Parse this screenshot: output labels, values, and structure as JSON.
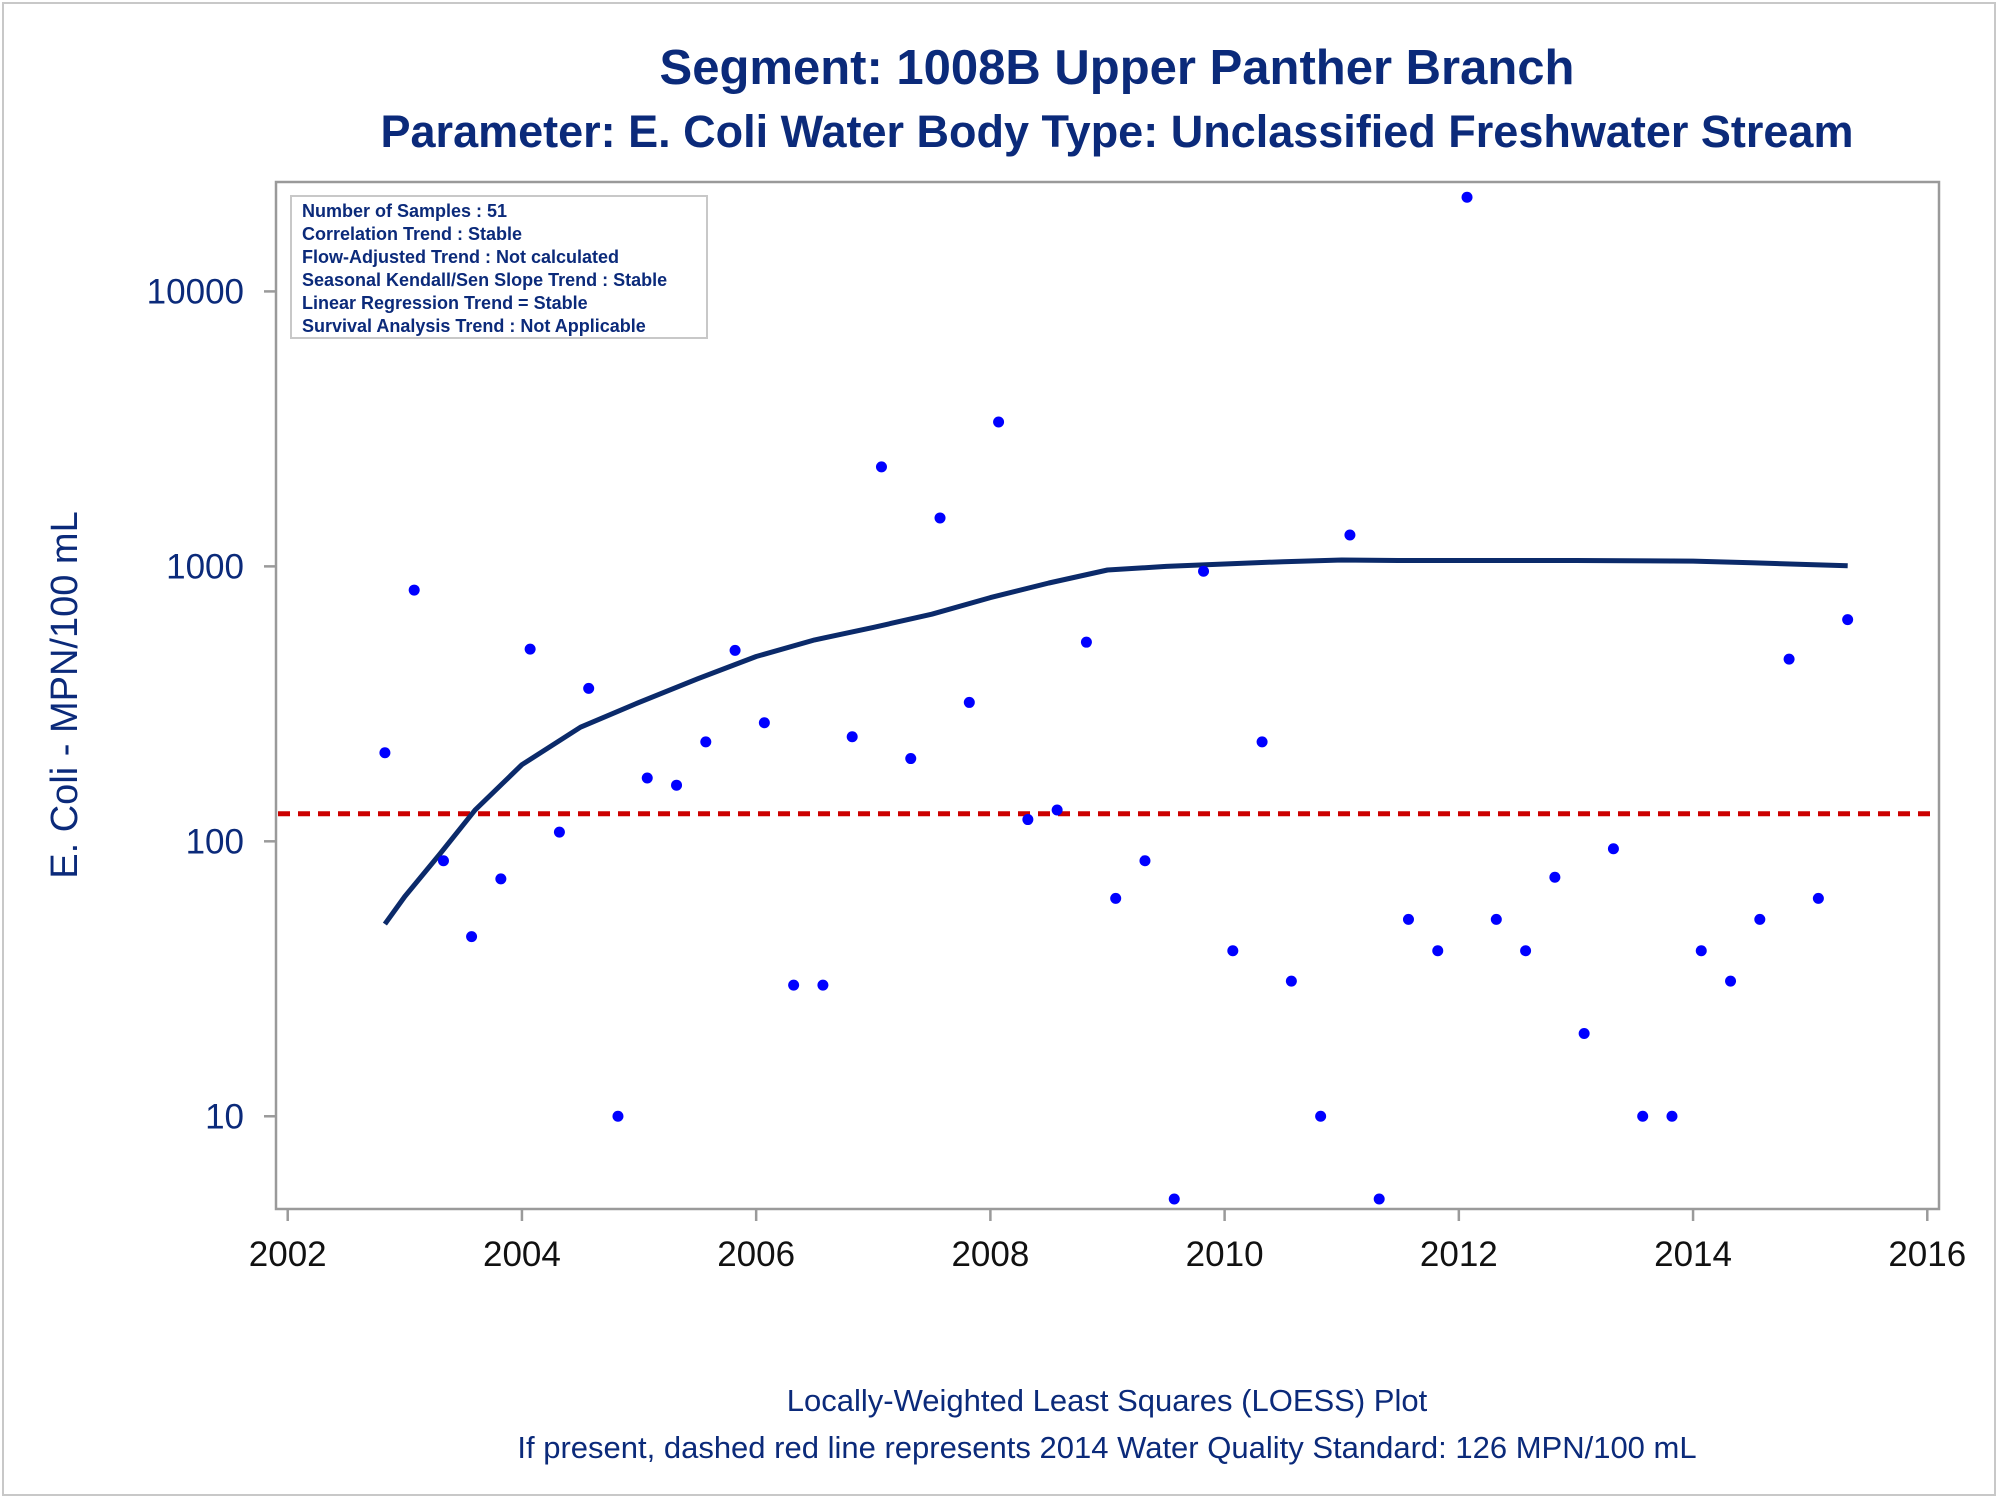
{
  "colors": {
    "text": "#0b2a7a",
    "tick_text_x": "#111111",
    "frame": "#9a9a9a",
    "points": "#0000ff",
    "loess": "#0b2a6a",
    "standard_line": "#cc0000"
  },
  "titles": {
    "line1": "Segment: 1008B  Upper Panther Branch",
    "line2": "Parameter: E. Coli   Water Body Type: Unclassified Freshwater Stream"
  },
  "footnotes": {
    "line1": "Locally-Weighted Least Squares (LOESS) Plot",
    "line2": "If present, dashed red line represents 2014 Water Quality Standard: 126 MPN/100 mL"
  },
  "stats_box": {
    "lines": [
      "Number of Samples : 51",
      "Correlation Trend : Stable",
      "Flow-Adjusted Trend : Not calculated",
      "Seasonal Kendall/Sen Slope Trend : Stable",
      "Linear Regression Trend = Stable",
      "Survival Analysis Trend : Not Applicable"
    ]
  },
  "chart_data": {
    "type": "scatter",
    "xlabel": "",
    "ylabel": "E. Coli - MPN/100 mL",
    "x_scale": "linear",
    "y_scale": "log",
    "xlim": [
      2001.9,
      2016.1
    ],
    "ylim": [
      4.6,
      25000
    ],
    "x_ticks": [
      2002,
      2004,
      2006,
      2008,
      2010,
      2012,
      2014,
      2016
    ],
    "x_tick_labels": [
      "2002",
      "2004",
      "2006",
      "2008",
      "2010",
      "2012",
      "2014",
      "2016"
    ],
    "y_ticks": [
      10,
      100,
      1000,
      10000
    ],
    "y_tick_labels": [
      "10",
      "100",
      "1000",
      "10000"
    ],
    "grid": false,
    "legend": "none",
    "standard_line": {
      "y": 126,
      "style": "dashed"
    },
    "points": [
      {
        "x": 2002.83,
        "y": 210
      },
      {
        "x": 2003.08,
        "y": 820
      },
      {
        "x": 2003.33,
        "y": 85
      },
      {
        "x": 2003.57,
        "y": 45
      },
      {
        "x": 2003.82,
        "y": 73
      },
      {
        "x": 2004.07,
        "y": 500
      },
      {
        "x": 2004.32,
        "y": 108
      },
      {
        "x": 2004.57,
        "y": 360
      },
      {
        "x": 2004.82,
        "y": 10
      },
      {
        "x": 2005.07,
        "y": 170
      },
      {
        "x": 2005.32,
        "y": 160
      },
      {
        "x": 2005.57,
        "y": 230
      },
      {
        "x": 2005.82,
        "y": 495
      },
      {
        "x": 2006.07,
        "y": 270
      },
      {
        "x": 2006.32,
        "y": 30
      },
      {
        "x": 2006.57,
        "y": 30
      },
      {
        "x": 2006.82,
        "y": 240
      },
      {
        "x": 2007.07,
        "y": 2300
      },
      {
        "x": 2007.32,
        "y": 200
      },
      {
        "x": 2007.57,
        "y": 1500
      },
      {
        "x": 2007.82,
        "y": 320
      },
      {
        "x": 2008.07,
        "y": 3350
      },
      {
        "x": 2008.32,
        "y": 120
      },
      {
        "x": 2008.57,
        "y": 130
      },
      {
        "x": 2008.82,
        "y": 530
      },
      {
        "x": 2009.07,
        "y": 62
      },
      {
        "x": 2009.32,
        "y": 85
      },
      {
        "x": 2009.57,
        "y": 5
      },
      {
        "x": 2009.82,
        "y": 960
      },
      {
        "x": 2010.07,
        "y": 40
      },
      {
        "x": 2010.32,
        "y": 230
      },
      {
        "x": 2010.57,
        "y": 31
      },
      {
        "x": 2010.82,
        "y": 10
      },
      {
        "x": 2011.07,
        "y": 1300
      },
      {
        "x": 2011.32,
        "y": 5
      },
      {
        "x": 2011.57,
        "y": 52
      },
      {
        "x": 2011.82,
        "y": 40
      },
      {
        "x": 2012.07,
        "y": 22000
      },
      {
        "x": 2012.32,
        "y": 52
      },
      {
        "x": 2012.57,
        "y": 40
      },
      {
        "x": 2012.82,
        "y": 74
      },
      {
        "x": 2013.07,
        "y": 20
      },
      {
        "x": 2013.32,
        "y": 94
      },
      {
        "x": 2013.57,
        "y": 10
      },
      {
        "x": 2013.82,
        "y": 10
      },
      {
        "x": 2014.07,
        "y": 40
      },
      {
        "x": 2014.32,
        "y": 31
      },
      {
        "x": 2014.57,
        "y": 52
      },
      {
        "x": 2014.82,
        "y": 460
      },
      {
        "x": 2015.07,
        "y": 62
      },
      {
        "x": 2015.32,
        "y": 640
      }
    ],
    "loess": [
      {
        "x": 2002.83,
        "y": 50
      },
      {
        "x": 2003.0,
        "y": 63
      },
      {
        "x": 2003.3,
        "y": 90
      },
      {
        "x": 2003.6,
        "y": 130
      },
      {
        "x": 2004.0,
        "y": 190
      },
      {
        "x": 2004.5,
        "y": 260
      },
      {
        "x": 2005.0,
        "y": 320
      },
      {
        "x": 2005.5,
        "y": 390
      },
      {
        "x": 2006.0,
        "y": 470
      },
      {
        "x": 2006.5,
        "y": 540
      },
      {
        "x": 2007.0,
        "y": 600
      },
      {
        "x": 2007.5,
        "y": 670
      },
      {
        "x": 2008.0,
        "y": 770
      },
      {
        "x": 2008.5,
        "y": 870
      },
      {
        "x": 2009.0,
        "y": 970
      },
      {
        "x": 2009.5,
        "y": 1000
      },
      {
        "x": 2010.0,
        "y": 1020
      },
      {
        "x": 2010.5,
        "y": 1040
      },
      {
        "x": 2011.0,
        "y": 1055
      },
      {
        "x": 2011.5,
        "y": 1050
      },
      {
        "x": 2012.0,
        "y": 1050
      },
      {
        "x": 2013.0,
        "y": 1050
      },
      {
        "x": 2014.0,
        "y": 1045
      },
      {
        "x": 2014.5,
        "y": 1030
      },
      {
        "x": 2015.0,
        "y": 1015
      },
      {
        "x": 2015.32,
        "y": 1005
      }
    ]
  }
}
